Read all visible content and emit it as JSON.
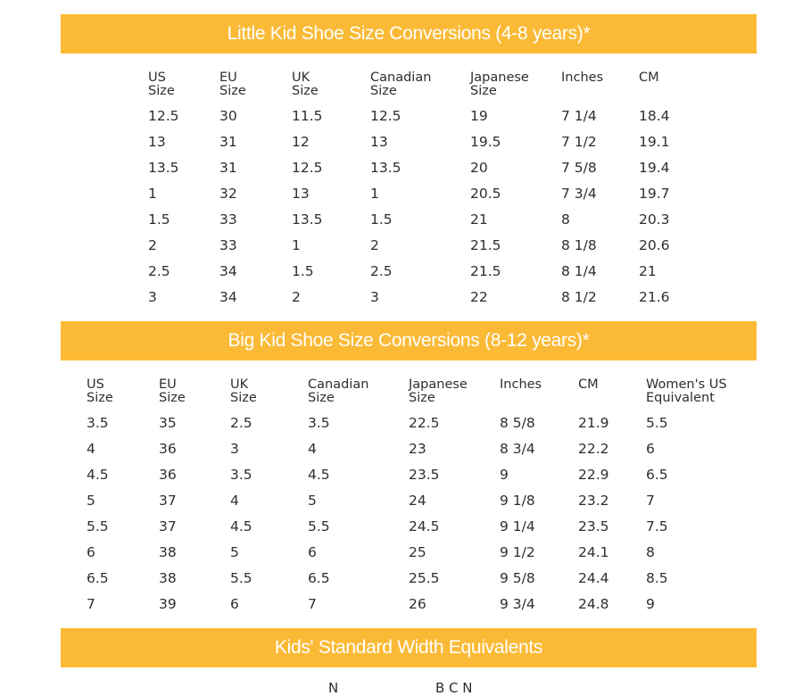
{
  "brand_color": "#fbba36",
  "little_kid": {
    "title": "Little Kid Shoe Size Conversions (4-8 years)*",
    "headers": [
      "US\nSize",
      "EU\nSize",
      "UK\nSize",
      "Canadian\nSize",
      "Japanese\nSize",
      "Inches",
      "CM"
    ],
    "rows": [
      [
        "12.5",
        "30",
        "11.5",
        "12.5",
        "19",
        "7 1/4",
        "18.4"
      ],
      [
        "13",
        "31",
        "12",
        "13",
        "19.5",
        "7 1/2",
        "19.1"
      ],
      [
        "13.5",
        "31",
        "12.5",
        "13.5",
        "20",
        "7 5/8",
        "19.4"
      ],
      [
        "1",
        "32",
        "13",
        "1",
        "20.5",
        "7 3/4",
        "19.7"
      ],
      [
        "1.5",
        "33",
        "13.5",
        "1.5",
        "21",
        "8",
        "20.3"
      ],
      [
        "2",
        "33",
        "1",
        "2",
        "21.5",
        "8 1/8",
        "20.6"
      ],
      [
        "2.5",
        "34",
        "1.5",
        "2.5",
        "21.5",
        "8 1/4",
        "21"
      ],
      [
        "3",
        "34",
        "2",
        "3",
        "22",
        "8 1/2",
        "21.6"
      ]
    ]
  },
  "big_kid": {
    "title": "Big Kid Shoe Size Conversions (8-12 years)*",
    "headers": [
      "US\nSize",
      "EU\nSize",
      "UK\nSize",
      "Canadian\nSize",
      "Japanese\nSize",
      "Inches",
      "CM",
      "Women's US\nEquivalent"
    ],
    "rows": [
      [
        "3.5",
        "35",
        "2.5",
        "3.5",
        "22.5",
        "8 5/8",
        "21.9",
        "5.5"
      ],
      [
        "4",
        "36",
        "3",
        "4",
        "23",
        "8 3/4",
        "22.2",
        "6"
      ],
      [
        "4.5",
        "36",
        "3.5",
        "4.5",
        "23.5",
        "9",
        "22.9",
        "6.5"
      ],
      [
        "5",
        "37",
        "4",
        "5",
        "24",
        "9 1/8",
        "23.2",
        "7"
      ],
      [
        "5.5",
        "37",
        "4.5",
        "5.5",
        "24.5",
        "9 1/4",
        "23.5",
        "7.5"
      ],
      [
        "6",
        "38",
        "5",
        "6",
        "25",
        "9 1/2",
        "24.1",
        "8"
      ],
      [
        "6.5",
        "38",
        "5.5",
        "6.5",
        "25.5",
        "9 5/8",
        "24.4",
        "8.5"
      ],
      [
        "7",
        "39",
        "6",
        "7",
        "26",
        "9 3/4",
        "24.8",
        "9"
      ]
    ]
  },
  "width": {
    "title": "Kids' Standard Width Equivalents",
    "labels": [
      "N",
      "B C N"
    ]
  }
}
